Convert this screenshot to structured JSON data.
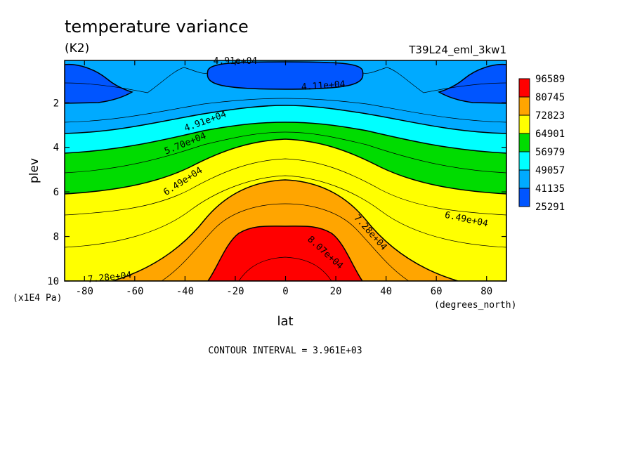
{
  "chart_data": {
    "type": "heatmap",
    "title": "temperature variance",
    "units": "(K2)",
    "run_label": "T39L24_eml_3kw1",
    "xlabel": "lat",
    "ylabel": "plev",
    "x_units": "(degrees_north)",
    "y_scale_label": "(x1E4 Pa)",
    "xlim": [
      -87.9,
      87.9
    ],
    "ylim": [
      10,
      0.1
    ],
    "x_ticks": [
      "-80",
      "-60",
      "-40",
      "-20",
      "0",
      "20",
      "40",
      "60",
      "80"
    ],
    "x_tick_values": [
      -80,
      -60,
      -40,
      -20,
      0,
      20,
      40,
      60,
      80
    ],
    "y_ticks": [
      "2",
      "4",
      "6",
      "8",
      "10"
    ],
    "y_tick_values": [
      2,
      4,
      6,
      8,
      10
    ],
    "contour_interval_text": "CONTOUR INTERVAL = 3.961E+03",
    "legend_values": [
      "96589",
      "80745",
      "72823",
      "64901",
      "56979",
      "49057",
      "41135",
      "25291"
    ],
    "legend_colors": [
      "#ff0000",
      "#ffa500",
      "#ffff00",
      "#00dc00",
      "#00ffff",
      "#00aaff",
      "#0055ff"
    ],
    "bands": [
      {
        "lower": 80745,
        "upper": 96589,
        "color": "#ff0000",
        "lat_edges": [
          -33,
          33
        ],
        "p_top": 7.5,
        "p_bottom": 10
      },
      {
        "lower": 72823,
        "upper": 80745,
        "color": "#ffa500",
        "lat_edges": [
          -60,
          60
        ],
        "p_top": 5.5,
        "p_bottom": 10
      },
      {
        "lower": 64901,
        "upper": 72823,
        "color": "#ffff00",
        "lat_edges": [
          -88,
          88
        ],
        "p_top": 4.2,
        "p_bottom": 10
      },
      {
        "lower": 56979,
        "upper": 64901,
        "color": "#00dc00",
        "lat_edges": [
          -88,
          88
        ],
        "p_top": 3.2,
        "p_bottom": 10
      },
      {
        "lower": 49057,
        "upper": 56979,
        "color": "#00ffff",
        "lat_edges": [
          -88,
          88
        ],
        "p_top": 2.4,
        "p_bottom": 10
      },
      {
        "lower": 41135,
        "upper": 49057,
        "color": "#00aaff",
        "lat_edges": [
          -88,
          88
        ],
        "p_top": 0.1,
        "p_bottom": 10
      },
      {
        "lower": 25291,
        "upper": 41135,
        "color": "#0055ff",
        "regions": "polar cap near top at 60-88 N/S and equatorial cap near top at -30 to 30"
      }
    ],
    "contour_labels": [
      {
        "text": "4.91e+04",
        "lat": -20,
        "p": 0.1
      },
      {
        "text": "4.11e+04",
        "lat": 15,
        "p": 1.2
      },
      {
        "text": "4.91e+04",
        "lat": -32,
        "p": 2.8
      },
      {
        "text": "5.70e+04",
        "lat": -40,
        "p": 3.8
      },
      {
        "text": "6.49e+04",
        "lat": -41,
        "p": 5.5
      },
      {
        "text": "7.28e+04",
        "lat": 34,
        "p": 7.8
      },
      {
        "text": "6.49e+04",
        "lat": 72,
        "p": 7.2
      },
      {
        "text": "8.07e+04",
        "lat": 16,
        "p": 8.7
      },
      {
        "text": "7.28e+04",
        "lat": -70,
        "p": 9.8
      }
    ]
  }
}
